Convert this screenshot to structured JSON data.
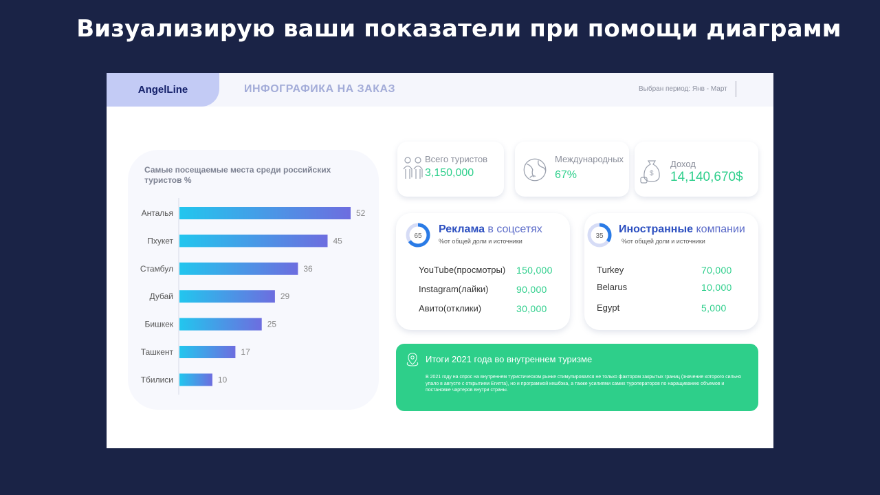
{
  "headline": "Визуализирую ваши показатели при помощи диаграмм",
  "brand": "AngelLine",
  "app_title": "ИНФОГРАФИКА НА ЗАКАЗ",
  "period": {
    "label": "Выбран период:",
    "value": "Янв - Март"
  },
  "chart_data": {
    "type": "bar",
    "title": "Самые посещаемые места среди российских туристов %",
    "categories": [
      "Анталья",
      "Пхукет",
      "Стамбул",
      "Дубай",
      "Бишкек",
      "Ташкент",
      "Тбилиси"
    ],
    "values": [
      52,
      45,
      36,
      29,
      25,
      17,
      10
    ],
    "orientation": "horizontal",
    "colors": {
      "start": "#22c6ee",
      "end": "#6d6ddf"
    }
  },
  "stats": [
    {
      "label": "Всего туристов",
      "value": "3,150,000",
      "icon": "tourists-icon"
    },
    {
      "label": "Международных",
      "value": "67%",
      "icon": "globe-icon"
    },
    {
      "label": "Доход",
      "value": "14,140,670$",
      "icon": "money-bag-icon"
    }
  ],
  "ads": {
    "donut": "65",
    "donut_percent": 65,
    "title_bold": "Реклама",
    "title_rest": "в соцсетях",
    "subtitle": "%от общей доли и источники",
    "rows": [
      {
        "label": "YouTube(просмотры)",
        "value": "150,000"
      },
      {
        "label": "Instagram(лайки)",
        "value": "90,000"
      },
      {
        "label": "Авито(отклики)",
        "value": "30,000"
      }
    ]
  },
  "foreign": {
    "donut": "35",
    "donut_percent": 35,
    "title_bold": "Иностранные",
    "title_rest": "компании",
    "subtitle": "%от общей доли и источники",
    "rows": [
      {
        "label": "Turkey",
        "value": "70,000"
      },
      {
        "label": "Belarus",
        "value": "10,000"
      },
      {
        "label": "Egypt",
        "value": "5,000"
      }
    ]
  },
  "summary": {
    "title": "Итоги 2021 года во внутреннем туризме",
    "text": "В 2021 году на спрос на внутреннем туристическом рынке стимулировался не только фактором закрытых границ (значение которого сильно упало в августе с открытием Египта), но и программой кешбэка, а также усилиями самих туроператоров по наращиванию объемов и постановке чартеров внутри страны.",
    "icon": "location-pin-icon"
  }
}
